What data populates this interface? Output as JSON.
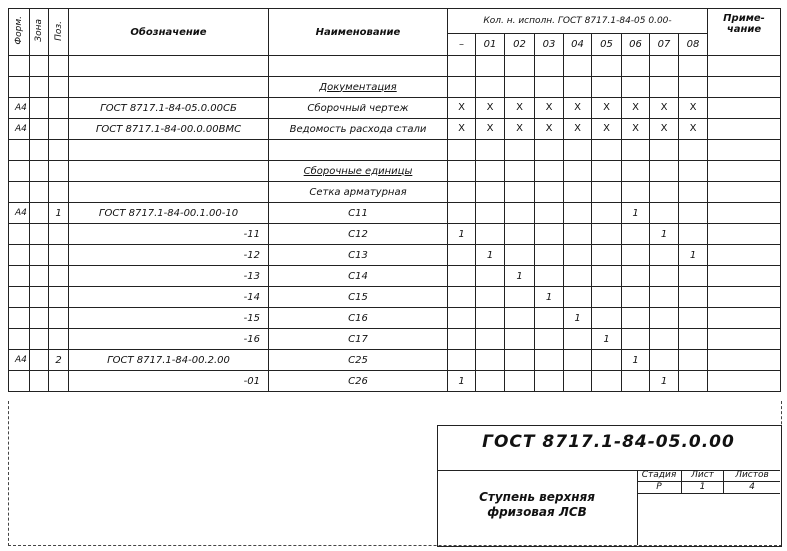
{
  "header": {
    "format": "Форм.",
    "zone": "Зона",
    "pos": "Поз.",
    "designation": "Обозначение",
    "name": "Наименование",
    "variants_title": "Кол. н. исполн. ГОСТ 8717.1-84-05 0.00-",
    "variants": [
      "–",
      "01",
      "02",
      "03",
      "04",
      "05",
      "06",
      "07",
      "08"
    ],
    "note": "Приме-чание"
  },
  "rows": [
    {
      "format": "",
      "pos": "",
      "designation": "",
      "name": "",
      "qty": [
        "",
        "",
        "",
        "",
        "",
        "",
        "",
        "",
        ""
      ]
    },
    {
      "format": "",
      "pos": "",
      "designation": "",
      "name": "Документация",
      "section": true,
      "qty": [
        "",
        "",
        "",
        "",
        "",
        "",
        "",
        "",
        ""
      ]
    },
    {
      "format": "А4",
      "pos": "",
      "designation": "ГОСТ 8717.1-84-05.0.00СБ",
      "name": "Сборочный чертеж",
      "qty": [
        "X",
        "X",
        "X",
        "X",
        "X",
        "X",
        "X",
        "X",
        "X"
      ]
    },
    {
      "format": "А4",
      "pos": "",
      "designation": "ГОСТ 8717.1-84-00.0.00ВМС",
      "name": "Ведомость расхода стали",
      "qty": [
        "X",
        "X",
        "X",
        "X",
        "X",
        "X",
        "X",
        "X",
        "X"
      ]
    },
    {
      "format": "",
      "pos": "",
      "designation": "",
      "name": "",
      "qty": [
        "",
        "",
        "",
        "",
        "",
        "",
        "",
        "",
        ""
      ]
    },
    {
      "format": "",
      "pos": "",
      "designation": "",
      "name": "Сборочные единицы",
      "section": true,
      "qty": [
        "",
        "",
        "",
        "",
        "",
        "",
        "",
        "",
        ""
      ]
    },
    {
      "format": "",
      "pos": "",
      "designation": "",
      "name": "Сетка арматурная",
      "qty": [
        "",
        "",
        "",
        "",
        "",
        "",
        "",
        "",
        ""
      ]
    },
    {
      "format": "А4",
      "pos": "1",
      "designation": "ГОСТ 8717.1-84-00.1.00-10",
      "name": "С11",
      "qty": [
        "",
        "",
        "",
        "",
        "",
        "",
        "1",
        "",
        ""
      ]
    },
    {
      "format": "",
      "pos": "",
      "designation": "-11",
      "name": "С12",
      "qty": [
        "1",
        "",
        "",
        "",
        "",
        "",
        "",
        "1",
        ""
      ]
    },
    {
      "format": "",
      "pos": "",
      "designation": "-12",
      "name": "С13",
      "qty": [
        "",
        "1",
        "",
        "",
        "",
        "",
        "",
        "",
        "1"
      ]
    },
    {
      "format": "",
      "pos": "",
      "designation": "-13",
      "name": "С14",
      "qty": [
        "",
        "",
        "1",
        "",
        "",
        "",
        "",
        "",
        ""
      ]
    },
    {
      "format": "",
      "pos": "",
      "designation": "-14",
      "name": "С15",
      "qty": [
        "",
        "",
        "",
        "1",
        "",
        "",
        "",
        "",
        ""
      ]
    },
    {
      "format": "",
      "pos": "",
      "designation": "-15",
      "name": "С16",
      "qty": [
        "",
        "",
        "",
        "",
        "1",
        "",
        "",
        "",
        ""
      ]
    },
    {
      "format": "",
      "pos": "",
      "designation": "-16",
      "name": "С17",
      "qty": [
        "",
        "",
        "",
        "",
        "",
        "1",
        "",
        "",
        ""
      ]
    },
    {
      "format": "А4",
      "pos": "2",
      "designation": "ГОСТ 8717.1-84-00.2.00",
      "name": "С25",
      "qty": [
        "",
        "",
        "",
        "",
        "",
        "",
        "1",
        "",
        ""
      ]
    },
    {
      "format": "",
      "pos": "",
      "designation": "-01",
      "name": "С26",
      "qty": [
        "1",
        "",
        "",
        "",
        "",
        "",
        "",
        "1",
        ""
      ]
    }
  ],
  "title_block": {
    "document_code": "ГОСТ 8717.1-84-05.0.00",
    "product_name": "Ступень верхняя фризовая ЛСВ",
    "stage_label": "Стадия",
    "sheet_label": "Лист",
    "sheets_label": "Листов",
    "stage": "Р",
    "sheet": "1",
    "sheets": "4"
  }
}
